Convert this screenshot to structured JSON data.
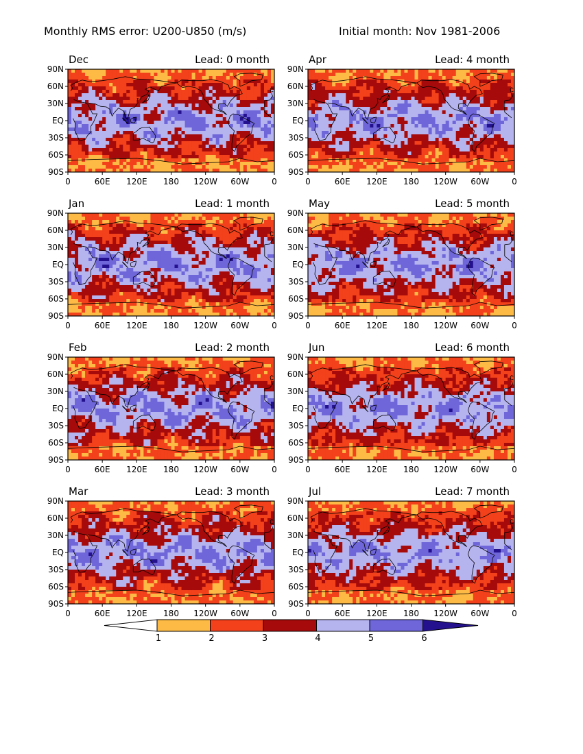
{
  "title_left": "Monthly RMS error: U200-U850 (m/s)",
  "title_right": "Initial month: Nov 1981-2006",
  "lon_ticks": [
    "0",
    "60E",
    "120E",
    "180",
    "120W",
    "60W",
    "0"
  ],
  "lat_ticks": [
    "90N",
    "60N",
    "30N",
    "EQ",
    "30S",
    "60S",
    "90S"
  ],
  "palette": {
    "1-2": "#fdbb46",
    "2-3": "#f2411b",
    "3-4": "#a60a0a",
    "4-5": "#b6b4ef",
    "5-6": "#6e66d9",
    ">6": "#24118e",
    "<1": "#ffffff"
  },
  "colorbar": {
    "labels": [
      "1",
      "2",
      "3",
      "4",
      "5",
      "6"
    ]
  },
  "chart_data": [
    {
      "type": "heatmap",
      "month": "Dec",
      "lead_label": "Lead: 0 month",
      "lead": 0
    },
    {
      "type": "heatmap",
      "month": "Jan",
      "lead_label": "Lead: 1 month",
      "lead": 1
    },
    {
      "type": "heatmap",
      "month": "Feb",
      "lead_label": "Lead: 2 month",
      "lead": 2
    },
    {
      "type": "heatmap",
      "month": "Mar",
      "lead_label": "Lead: 3 month",
      "lead": 3
    },
    {
      "type": "heatmap",
      "month": "Apr",
      "lead_label": "Lead: 4 month",
      "lead": 4
    },
    {
      "type": "heatmap",
      "month": "May",
      "lead_label": "Lead: 5 month",
      "lead": 5
    },
    {
      "type": "heatmap",
      "month": "Jun",
      "lead_label": "Lead: 6 month",
      "lead": 6
    },
    {
      "type": "heatmap",
      "month": "Jul",
      "lead_label": "Lead: 7 month",
      "lead": 7
    }
  ]
}
